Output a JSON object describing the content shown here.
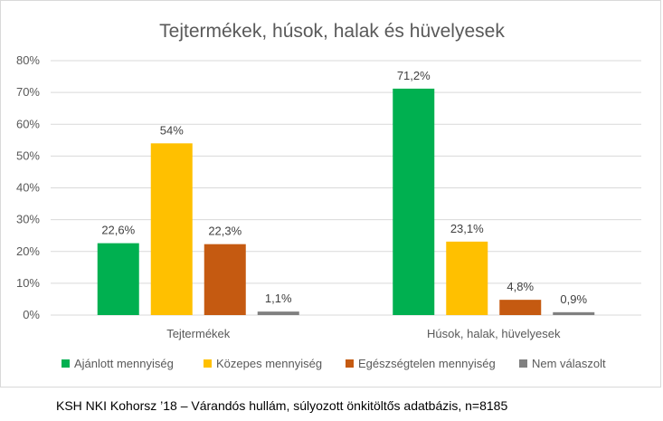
{
  "chart_data": {
    "type": "bar",
    "title": "Tejtermékek, húsok, halak és hüvelyesek",
    "categories": [
      "Tejtermékek",
      "Húsok, halak, hüvelyesek"
    ],
    "series": [
      {
        "name": "Ajánlott mennyiség",
        "values": [
          22.6,
          71.2
        ],
        "labels": [
          "22,6%",
          "71,2%"
        ],
        "color": "#00b050"
      },
      {
        "name": "Közepes mennyiség",
        "values": [
          54.0,
          23.1
        ],
        "labels": [
          "54%",
          "23,1%"
        ],
        "color": "#ffc000"
      },
      {
        "name": "Egészségtelen mennyiség",
        "values": [
          22.3,
          4.8
        ],
        "labels": [
          "22,3%",
          "4,8%"
        ],
        "color": "#c55a11"
      },
      {
        "name": "Nem válaszolt",
        "values": [
          1.1,
          0.9
        ],
        "labels": [
          "1,1%",
          "0,9%"
        ],
        "color": "#808080"
      }
    ],
    "ylim": [
      0,
      80
    ],
    "yticks": [
      0,
      10,
      20,
      30,
      40,
      50,
      60,
      70,
      80
    ],
    "ytick_labels": [
      "0%",
      "10%",
      "20%",
      "30%",
      "40%",
      "50%",
      "60%",
      "70%",
      "80%"
    ],
    "grid": true,
    "legend_position": "bottom"
  },
  "caption": "KSH NKI Kohorsz ’18 – Várandós hullám, súlyozott önkitöltős adatbázis, n=8185"
}
